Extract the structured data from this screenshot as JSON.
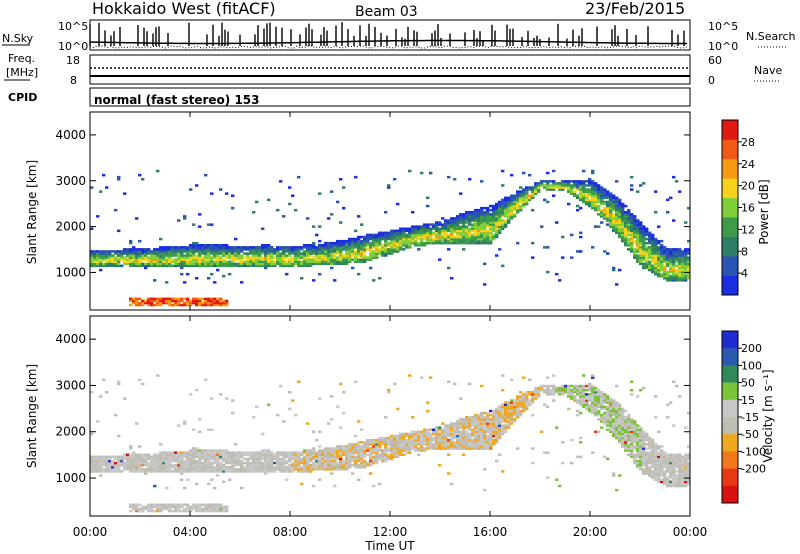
{
  "header": {
    "station": "Hokkaido West (fitACF)",
    "beam": "Beam 03",
    "date": "23/Feb/2015"
  },
  "top_panels": {
    "nsky_label": "N.Sky",
    "nsky_ticks": [
      "10^5",
      "10^0"
    ],
    "freq_label_1": "Freq.",
    "freq_label_2": "[MHz]",
    "freq_ticks": [
      "18",
      "8"
    ],
    "nsearch_ticks": [
      "10^5",
      "10^0"
    ],
    "nsearch_label": "N.Search",
    "nave_ticks": [
      "60",
      "0"
    ],
    "nave_label": "Nave",
    "cpid_label": "CPID",
    "cpid_value": "normal (fast stereo) 153"
  },
  "colors": {
    "power_scale": [
      "#1a2ee0",
      "#2a55b0",
      "#2e7d66",
      "#3e9b4a",
      "#7fcf3a",
      "#f7d21a",
      "#f59a12",
      "#f05a14",
      "#e01a12"
    ],
    "velocity_scale": [
      "#1e2bd0",
      "#2a5ab0",
      "#2f8a5a",
      "#7ac43a",
      "#c8c8c8",
      "#c0bdb4",
      "#f0a820",
      "#f07818",
      "#e83814",
      "#d81010"
    ]
  },
  "chart_data": [
    {
      "type": "heatmap",
      "title": "",
      "xlabel": "",
      "ylabel": "Slant Range [km]",
      "ylim": [
        180,
        4500
      ],
      "yticks": [
        "1000",
        "2000",
        "3000",
        "4000"
      ],
      "colorbar": {
        "label": "Power [dB]",
        "range": [
          0,
          32
        ],
        "tick_labels": [
          "28",
          "24",
          "20",
          "16",
          "12",
          "8",
          "4"
        ]
      },
      "x_hours": [
        0,
        1,
        2,
        3,
        4,
        5,
        6,
        7,
        8,
        9,
        10,
        11,
        12,
        13,
        14,
        15,
        16,
        17,
        18,
        19,
        20,
        21,
        22,
        23,
        24
      ],
      "echo_band_lower_km": [
        1120,
        1120,
        1120,
        1120,
        1120,
        1120,
        1120,
        1120,
        1100,
        1130,
        1150,
        1220,
        1390,
        1560,
        1600,
        1600,
        1620,
        2250,
        2800,
        2750,
        2400,
        1800,
        1100,
        800,
        800
      ],
      "echo_band_upper_km": [
        1480,
        1480,
        1500,
        1540,
        1580,
        1590,
        1560,
        1580,
        1550,
        1600,
        1680,
        1800,
        1900,
        2000,
        2100,
        2300,
        2450,
        2750,
        3000,
        3000,
        3000,
        2650,
        2050,
        1500,
        1500
      ],
      "near_range_echo_km": [
        450,
        250
      ],
      "near_range_echo_hours": [
        1.5,
        5.5
      ]
    },
    {
      "type": "heatmap",
      "title": "",
      "xlabel": "Time UT",
      "ylabel": "Slant Range [km]",
      "ylim": [
        180,
        4500
      ],
      "xticks": [
        "00:00",
        "04:00",
        "08:00",
        "12:00",
        "16:00",
        "20:00",
        "00:00"
      ],
      "yticks": [
        "1000",
        "2000",
        "3000",
        "4000"
      ],
      "colorbar": {
        "label": "Velocity [m s⁻¹]",
        "tick_labels": [
          "200",
          "100",
          "50",
          "15",
          "-15",
          "-50",
          "-100",
          "-200"
        ]
      }
    }
  ]
}
